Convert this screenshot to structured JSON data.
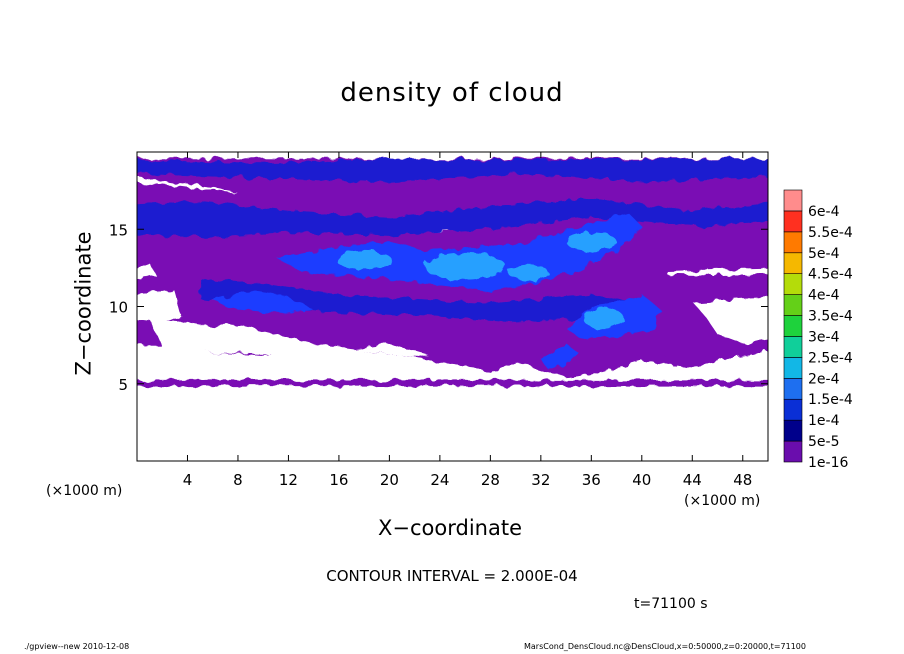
{
  "chart_data": {
    "type": "heatmap",
    "title": "density of cloud",
    "xlabel": "X−coordinate",
    "ylabel": "Z−coordinate",
    "x_unit_left": "(×1000 m)",
    "x_unit_right": "(×1000 m)",
    "xlim": [
      0,
      50
    ],
    "ylim": [
      0,
      20
    ],
    "x_ticks": [
      4,
      8,
      12,
      16,
      20,
      24,
      28,
      32,
      36,
      40,
      44,
      48
    ],
    "x_tick_labels": [
      "4",
      "8",
      "12",
      "16",
      "20",
      "24",
      "28",
      "32",
      "36",
      "40",
      "44",
      "48"
    ],
    "y_ticks": [
      5,
      10,
      15
    ],
    "y_tick_labels": [
      "5",
      "10",
      "15"
    ],
    "colorbar": {
      "labels": [
        "1e-16",
        "5e-5",
        "1e-4",
        "1.5e-4",
        "2e-4",
        "2.5e-4",
        "3e-4",
        "3.5e-4",
        "4e-4",
        "4.5e-4",
        "5e-4",
        "5.5e-4",
        "6e-4"
      ],
      "colors": [
        "#6a0dad",
        "#00008b",
        "#0a2fd6",
        "#1e6ff0",
        "#12b7e6",
        "#10cf9a",
        "#1ed23c",
        "#64d018",
        "#b4dc0a",
        "#f5b800",
        "#ff7a00",
        "#ff3020",
        "#ff8c8c"
      ]
    },
    "contour_interval": "CONTOUR INTERVAL = 2.000E-04",
    "time_label": "t=71100 s",
    "background_color": "#7a10b4",
    "dark_color": "#1e1ed0",
    "mid_color": "#1a3cff",
    "bright_color": "#28a0ff"
  },
  "footer": {
    "left": "./gpview--new   2010-12-08",
    "right": "MarsCond_DensCloud.nc@DensCloud,x=0:50000,z=0:20000,t=71100"
  }
}
